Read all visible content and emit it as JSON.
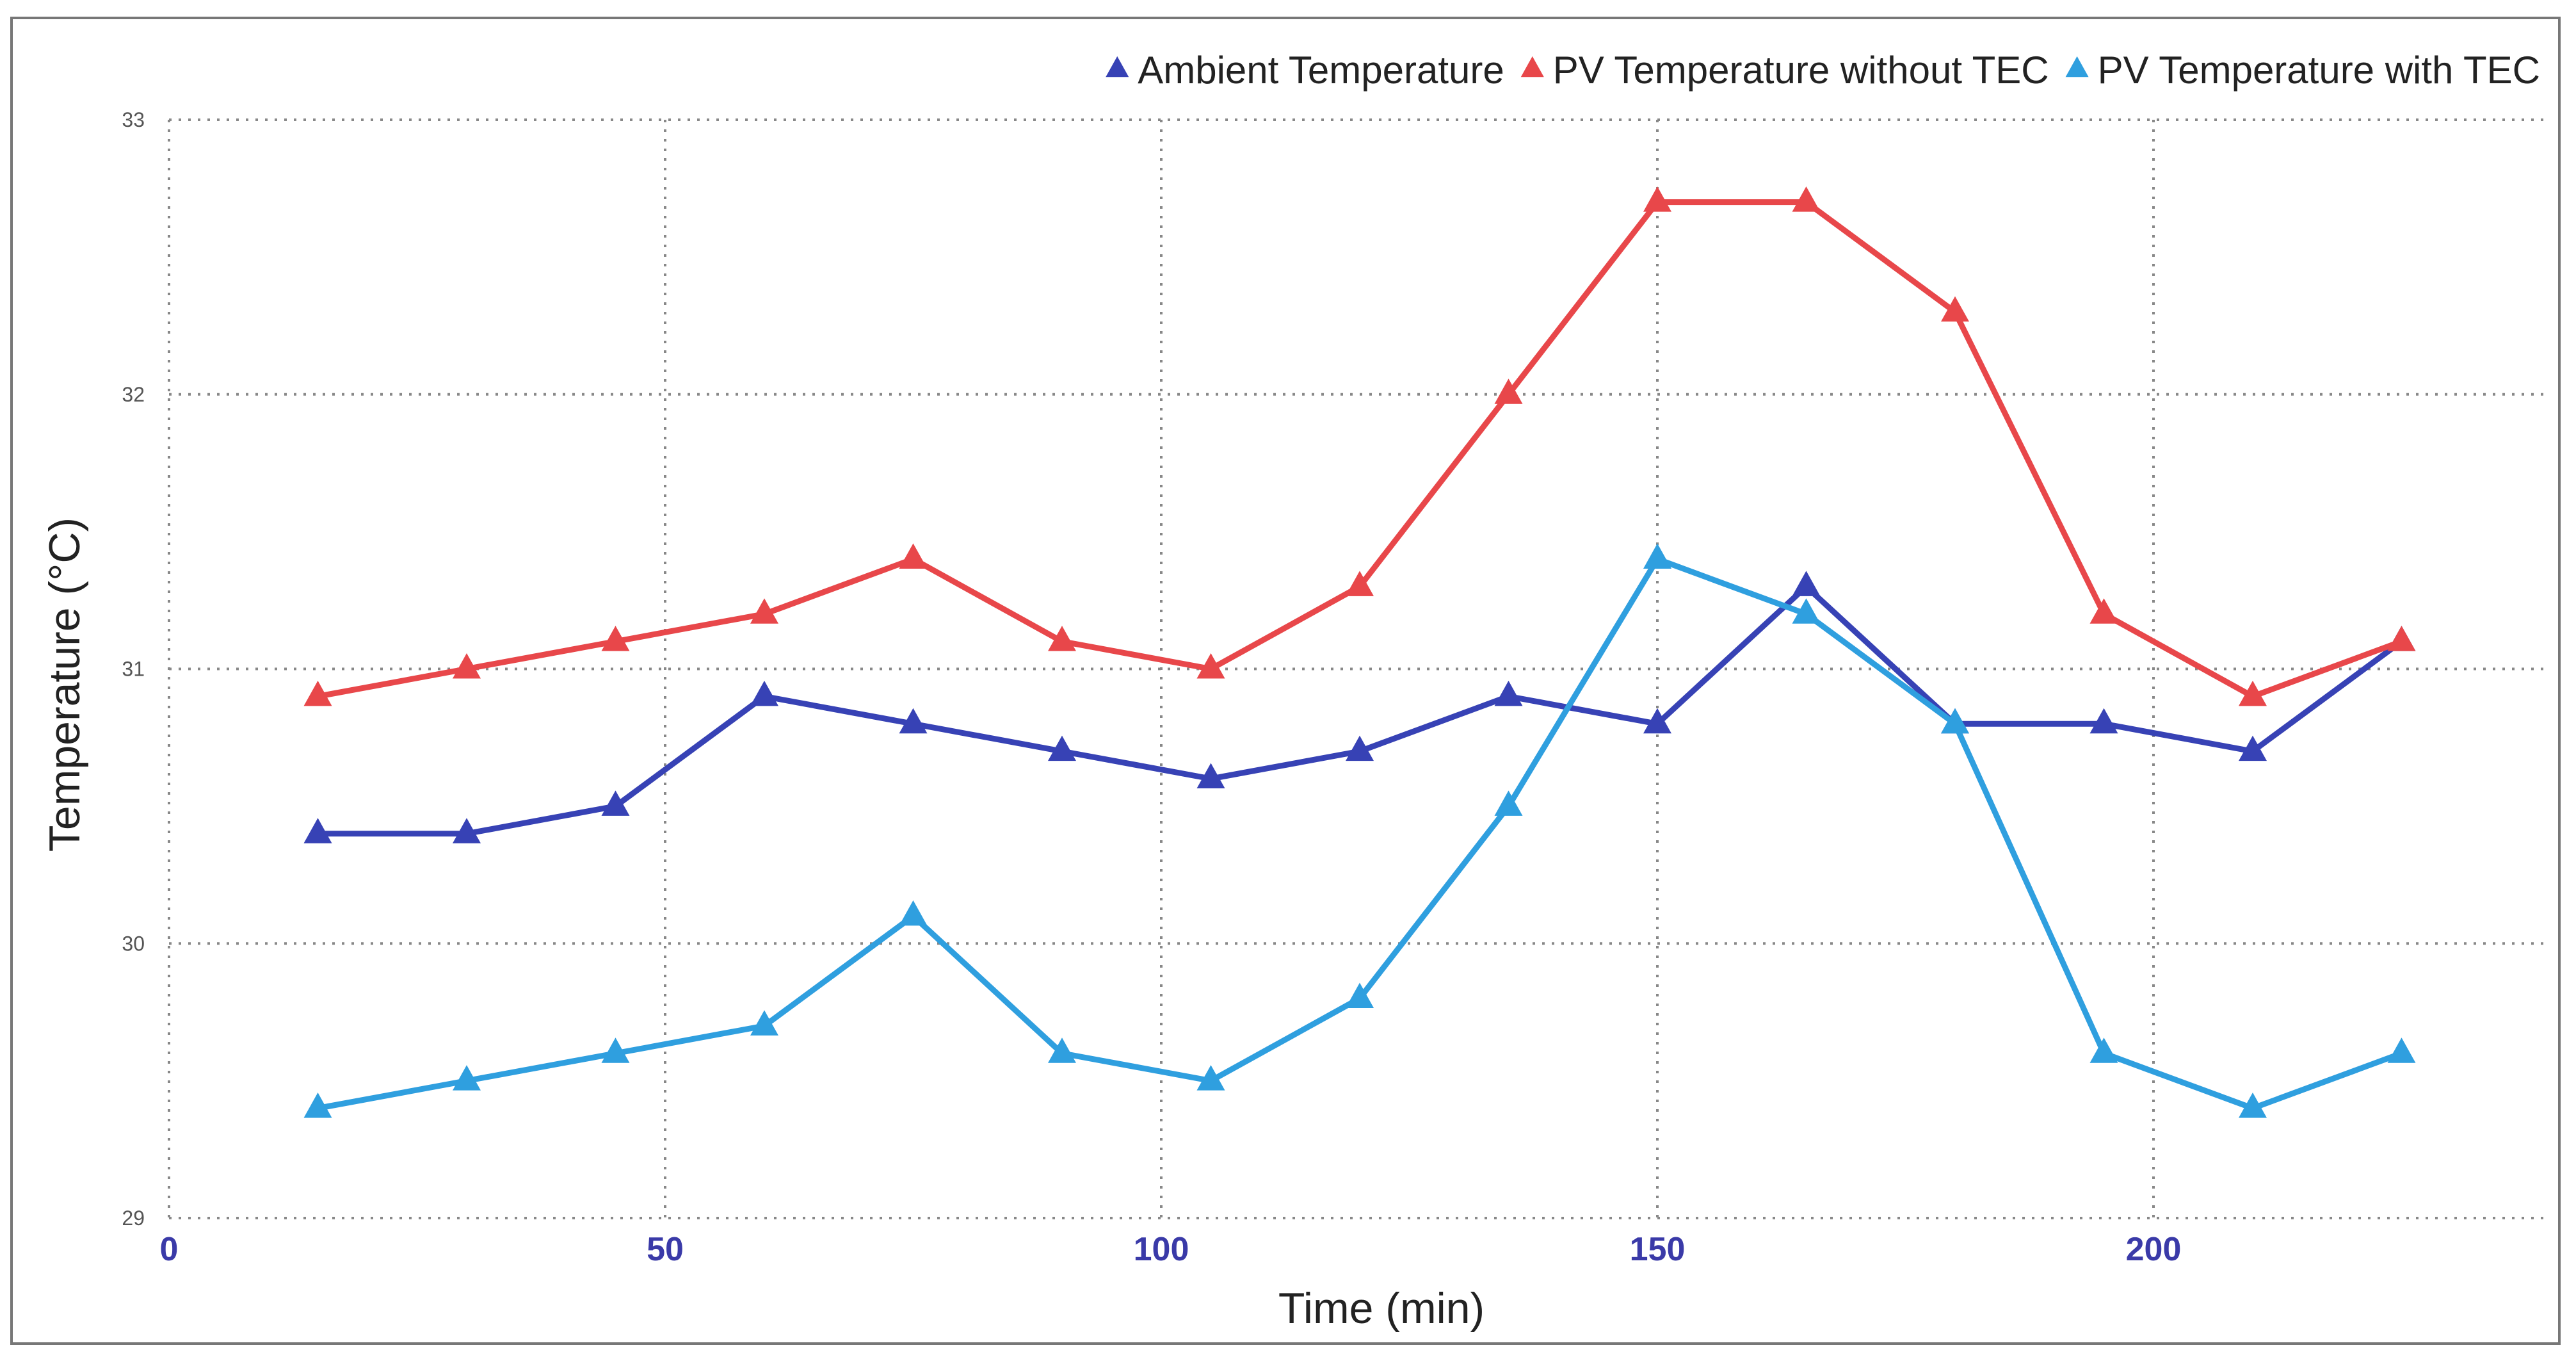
{
  "chart_data": {
    "type": "line",
    "xlabel": "Time (min)",
    "ylabel": "Temperature (°C)",
    "xlim": [
      0,
      240
    ],
    "ylim": [
      29,
      33
    ],
    "x_ticks": [
      0,
      50,
      100,
      150,
      200
    ],
    "y_ticks": [
      29,
      30,
      31,
      32,
      33
    ],
    "grid": true,
    "legend_position": "top-right",
    "marker": "triangle",
    "x": [
      15,
      30,
      45,
      60,
      75,
      90,
      105,
      120,
      135,
      150,
      165,
      180,
      195,
      210,
      225
    ],
    "series": [
      {
        "name": "Ambient Temperature",
        "color": "#3742b5",
        "values": [
          30.4,
          30.4,
          30.5,
          30.9,
          30.8,
          30.7,
          30.6,
          30.7,
          30.9,
          30.8,
          31.3,
          30.8,
          30.8,
          30.7,
          31.1
        ]
      },
      {
        "name": "PV Temperature without TEC",
        "color": "#e8474a",
        "values": [
          30.9,
          31.0,
          31.1,
          31.2,
          31.4,
          31.1,
          31.0,
          31.3,
          32.0,
          32.7,
          32.7,
          32.3,
          31.2,
          30.9,
          31.1
        ]
      },
      {
        "name": "PV Temperature with TEC",
        "color": "#2f9fdf",
        "values": [
          29.4,
          29.5,
          29.6,
          29.7,
          30.1,
          29.6,
          29.5,
          29.8,
          30.5,
          31.4,
          31.2,
          30.8,
          29.6,
          29.4,
          29.6
        ]
      }
    ]
  }
}
